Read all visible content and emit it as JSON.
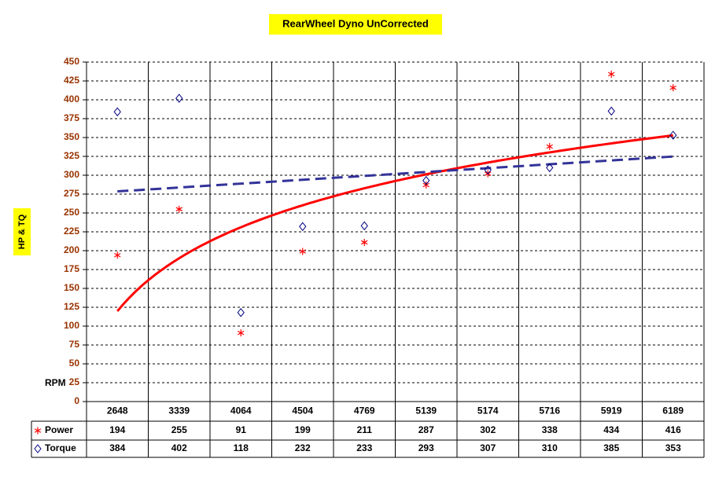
{
  "chart_data": {
    "type": "scatter",
    "title": "RearWheel Dyno UnCorrected",
    "y_label": "HP & TQ",
    "table_header": "RPM",
    "categories": [
      "2648",
      "3339",
      "4064",
      "4504",
      "4769",
      "5139",
      "5174",
      "5716",
      "5919",
      "6189"
    ],
    "series": [
      {
        "name": "Power",
        "color": "#ff0000",
        "marker": "star",
        "trendline": "logarithmic",
        "trend_style": "solid",
        "values": [
          194,
          255,
          91,
          199,
          211,
          287,
          302,
          338,
          434,
          416
        ]
      },
      {
        "name": "Torque",
        "color": "#000080",
        "marker": "diamond",
        "trendline": "linear",
        "trend_style": "dashed",
        "trend_color": "#333399",
        "values": [
          384,
          402,
          118,
          232,
          233,
          293,
          307,
          310,
          385,
          353
        ]
      }
    ],
    "ylim": [
      0,
      450
    ],
    "yticks": [
      0,
      25,
      50,
      75,
      100,
      125,
      150,
      175,
      200,
      225,
      250,
      275,
      300,
      325,
      350,
      375,
      400,
      425,
      450
    ],
    "grid": true
  }
}
